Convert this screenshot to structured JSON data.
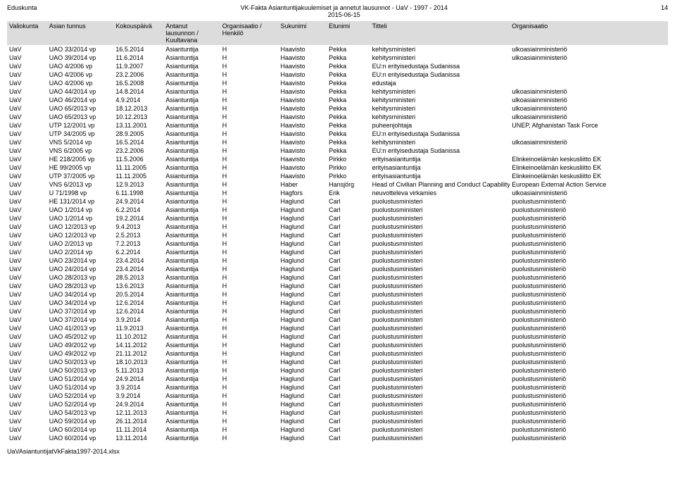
{
  "header": {
    "left": "Eduskunta",
    "title": "VK-Fakta Asiantuntijakuulemiset ja annetut lausunnot - UaV - 1997 - 2014",
    "date": "2015-06-15",
    "pagenum": "14"
  },
  "columns": [
    "Valiokunta",
    "Asian tunnus",
    "Kokouspäivä",
    "Antanut lausunnon / Kuultavana",
    "Organisaatio / Henkilö",
    "Sukunimi",
    "Etunimi",
    "Titteli",
    "Organisaatio"
  ],
  "rows": [
    [
      "UaV",
      "UAO 33/2014 vp",
      "16.5.2014",
      "Asiantuntija",
      "H",
      "Haavisto",
      "Pekka",
      "kehitysministeri",
      "ulkoasiainministeriö"
    ],
    [
      "UaV",
      "UAO 39/2014 vp",
      "11.6.2014",
      "Asiantuntija",
      "H",
      "Haavisto",
      "Pekka",
      "kehitysministeri",
      "ulkoasiainministeriö"
    ],
    [
      "UaV",
      "UAO 4/2006 vp",
      "11.9.2007",
      "Asiantuntija",
      "H",
      "Haavisto",
      "Pekka",
      "EU:n erityisedustaja Sudanissa",
      ""
    ],
    [
      "UaV",
      "UAO 4/2006 vp",
      "23.2.2006",
      "Asiantuntija",
      "H",
      "Haavisto",
      "Pekka",
      "EU:n erityisedustaja Sudanissa",
      ""
    ],
    [
      "UaV",
      "UAO 4/2006 vp",
      "16.5.2008",
      "Asiantuntija",
      "H",
      "Haavisto",
      "Pekka",
      "edustaja",
      ""
    ],
    [
      "UaV",
      "UAO 44/2014 vp",
      "14.8.2014",
      "Asiantuntija",
      "H",
      "Haavisto",
      "Pekka",
      "kehitysministeri",
      "ulkoasiainministeriö"
    ],
    [
      "UaV",
      "UAO 46/2014 vp",
      "4.9.2014",
      "Asiantuntija",
      "H",
      "Haavisto",
      "Pekka",
      "kehitysministeri",
      "ulkoasiainministeriö"
    ],
    [
      "UaV",
      "UAO 65/2013 vp",
      "18.12.2013",
      "Asiantuntija",
      "H",
      "Haavisto",
      "Pekka",
      "kehitysministeri",
      "ulkoasiainministeriö"
    ],
    [
      "UaV",
      "UAO 65/2013 vp",
      "10.12.2013",
      "Asiantuntija",
      "H",
      "Haavisto",
      "Pekka",
      "kehitysministeri",
      "ulkoasiainministeriö"
    ],
    [
      "UaV",
      "UTP 12/2001 vp",
      "13.11.2001",
      "Asiantuntija",
      "H",
      "Haavisto",
      "Pekka",
      "puheenjohtaja",
      "UNEP, Afghanistan Task Force"
    ],
    [
      "UaV",
      "UTP 34/2005 vp",
      "28.9.2005",
      "Asiantuntija",
      "H",
      "Haavisto",
      "Pekka",
      "EU:n erityisedustaja Sudanissa",
      ""
    ],
    [
      "UaV",
      "VNS 5/2014 vp",
      "16.5.2014",
      "Asiantuntija",
      "H",
      "Haavisto",
      "Pekka",
      "kehitysministeri",
      "ulkoasiainministeriö"
    ],
    [
      "UaV",
      "VNS 6/2005 vp",
      "23.2.2006",
      "Asiantuntija",
      "H",
      "Haavisto",
      "Pekka",
      "EU:n erityisedustaja Sudanissa",
      ""
    ],
    [
      "UaV",
      "HE 218/2005 vp",
      "11.5.2006",
      "Asiantuntija",
      "H",
      "Haavisto",
      "Pirkko",
      "erityisasiantuntija",
      "Elinkeinoelämän keskusliitto EK"
    ],
    [
      "UaV",
      "HE 99/2005 vp",
      "11.11.2005",
      "Asiantuntija",
      "H",
      "Haavisto",
      "Pirkko",
      "erityisasiantuntija",
      "Elinkeinoelämän keskusliitto EK"
    ],
    [
      "UaV",
      "UTP 37/2005 vp",
      "11.11.2005",
      "Asiantuntija",
      "H",
      "Haavisto",
      "Pirkko",
      "erityisasiantuntija",
      "Elinkeinoelämän keskusliitto EK"
    ],
    [
      "UaV",
      "VNS 6/2013 vp",
      "12.9.2013",
      "Asiantuntija",
      "H",
      "Haber",
      "Hansjörg",
      "Head of Civilian Planning and Conduct Capability",
      "European External Action Service"
    ],
    [
      "UaV",
      "U 71/1998 vp",
      "6.11.1998",
      "Asiantuntija",
      "H",
      "Hagfors",
      "Erik",
      "neuvotteleva virkamies",
      "ulkoasiainministeriö"
    ],
    [
      "UaV",
      "HE 131/2014 vp",
      "24.9.2014",
      "Asiantuntija",
      "H",
      "Haglund",
      "Carl",
      "puolustusministeri",
      "puolustusministeriö"
    ],
    [
      "UaV",
      "UAO 1/2014 vp",
      "6.2.2014",
      "Asiantuntija",
      "H",
      "Haglund",
      "Carl",
      "puolustusministeri",
      "puolustusministeriö"
    ],
    [
      "UaV",
      "UAO 1/2014 vp",
      "19.2.2014",
      "Asiantuntija",
      "H",
      "Haglund",
      "Carl",
      "puolustusministeri",
      "puolustusministeriö"
    ],
    [
      "UaV",
      "UAO 12/2013 vp",
      "9.4.2013",
      "Asiantuntija",
      "H",
      "Haglund",
      "Carl",
      "puolustusministeri",
      "puolustusministeriö"
    ],
    [
      "UaV",
      "UAO 12/2013 vp",
      "2.5.2013",
      "Asiantuntija",
      "H",
      "Haglund",
      "Carl",
      "puolustusministeri",
      "puolustusministeriö"
    ],
    [
      "UaV",
      "UAO 2/2013 vp",
      "7.2.2013",
      "Asiantuntija",
      "H",
      "Haglund",
      "Carl",
      "puolustusministeri",
      "puolustusministeriö"
    ],
    [
      "UaV",
      "UAO 2/2014 vp",
      "6.2.2014",
      "Asiantuntija",
      "H",
      "Haglund",
      "Carl",
      "puolustusministeri",
      "puolustusministeriö"
    ],
    [
      "UaV",
      "UAO 23/2014 vp",
      "23.4.2014",
      "Asiantuntija",
      "H",
      "Haglund",
      "Carl",
      "puolustusministeri",
      "puolustusministeriö"
    ],
    [
      "UaV",
      "UAO 24/2014 vp",
      "23.4.2014",
      "Asiantuntija",
      "H",
      "Haglund",
      "Carl",
      "puolustusministeri",
      "puolustusministeriö"
    ],
    [
      "UaV",
      "UAO 28/2013 vp",
      "28.5.2013",
      "Asiantuntija",
      "H",
      "Haglund",
      "Carl",
      "puolustusministeri",
      "puolustusministeriö"
    ],
    [
      "UaV",
      "UAO 28/2013 vp",
      "13.6.2013",
      "Asiantuntija",
      "H",
      "Haglund",
      "Carl",
      "puolustusministeri",
      "puolustusministeriö"
    ],
    [
      "UaV",
      "UAO 34/2014 vp",
      "20.5.2014",
      "Asiantuntija",
      "H",
      "Haglund",
      "Carl",
      "puolustusministeri",
      "puolustusministeriö"
    ],
    [
      "UaV",
      "UAO 34/2014 vp",
      "12.6.2014",
      "Asiantuntija",
      "H",
      "Haglund",
      "Carl",
      "puolustusministeri",
      "puolustusministeriö"
    ],
    [
      "UaV",
      "UAO 37/2014 vp",
      "12.6.2014",
      "Asiantuntija",
      "H",
      "Haglund",
      "Carl",
      "puolustusministeri",
      "puolustusministeriö"
    ],
    [
      "UaV",
      "UAO 37/2014 vp",
      "3.9.2014",
      "Asiantuntija",
      "H",
      "Haglund",
      "Carl",
      "puolustusministeri",
      "puolustusministeriö"
    ],
    [
      "UaV",
      "UAO 41/2013 vp",
      "11.9.2013",
      "Asiantuntija",
      "H",
      "Haglund",
      "Carl",
      "puolustusministeri",
      "puolustusministeriö"
    ],
    [
      "UaV",
      "UAO 45/2012 vp",
      "11.10.2012",
      "Asiantuntija",
      "H",
      "Haglund",
      "Carl",
      "puolustusministeri",
      "puolustusministeriö"
    ],
    [
      "UaV",
      "UAO 49/2012 vp",
      "14.11.2012",
      "Asiantuntija",
      "H",
      "Haglund",
      "Carl",
      "puolustusministeri",
      "puolustusministeriö"
    ],
    [
      "UaV",
      "UAO 49/2012 vp",
      "21.11.2012",
      "Asiantuntija",
      "H",
      "Haglund",
      "Carl",
      "puolustusministeri",
      "puolustusministeriö"
    ],
    [
      "UaV",
      "UAO 50/2013 vp",
      "18.10.2013",
      "Asiantuntija",
      "H",
      "Haglund",
      "Carl",
      "puolustusministeri",
      "puolustusministeriö"
    ],
    [
      "UaV",
      "UAO 50/2013 vp",
      "5.11.2013",
      "Asiantuntija",
      "H",
      "Haglund",
      "Carl",
      "puolustusministeri",
      "puolustusministeriö"
    ],
    [
      "UaV",
      "UAO 51/2014 vp",
      "24.9.2014",
      "Asiantuntija",
      "H",
      "Haglund",
      "Carl",
      "puolustusministeri",
      "puolustusministeriö"
    ],
    [
      "UaV",
      "UAO 51/2014 vp",
      "3.9.2014",
      "Asiantuntija",
      "H",
      "Haglund",
      "Carl",
      "puolustusministeri",
      "puolustusministeriö"
    ],
    [
      "UaV",
      "UAO 52/2014 vp",
      "3.9.2014",
      "Asiantuntija",
      "H",
      "Haglund",
      "Carl",
      "puolustusministeri",
      "puolustusministeriö"
    ],
    [
      "UaV",
      "UAO 52/2014 vp",
      "24.9.2014",
      "Asiantuntija",
      "H",
      "Haglund",
      "Carl",
      "puolustusministeri",
      "puolustusministeriö"
    ],
    [
      "UaV",
      "UAO 54/2013 vp",
      "12.11.2013",
      "Asiantuntija",
      "H",
      "Haglund",
      "Carl",
      "puolustusministeri",
      "puolustusministeriö"
    ],
    [
      "UaV",
      "UAO 59/2014 vp",
      "26.11.2014",
      "Asiantuntija",
      "H",
      "Haglund",
      "Carl",
      "puolustusministeri",
      "puolustusministeriö"
    ],
    [
      "UaV",
      "UAO 60/2014 vp",
      "11.11.2014",
      "Asiantuntija",
      "H",
      "Haglund",
      "Carl",
      "puolustusministeri",
      "puolustusministeriö"
    ],
    [
      "UaV",
      "UAO 60/2014 vp",
      "13.11.2014",
      "Asiantuntija",
      "H",
      "Haglund",
      "Carl",
      "puolustusministeri",
      "puolustusministeriö"
    ]
  ],
  "footer": "UaVAsiantuntijatVkFakta1997-2014.xlsx"
}
